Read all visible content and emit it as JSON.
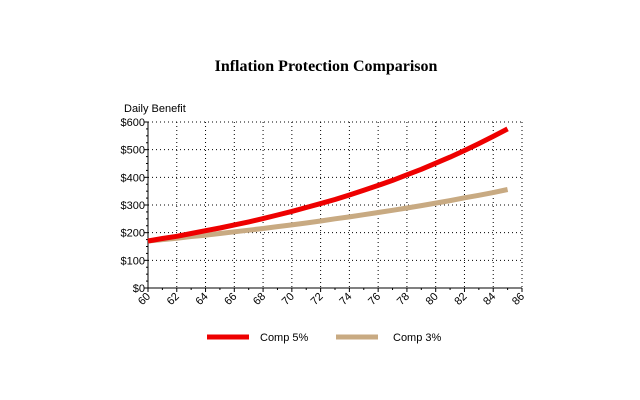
{
  "chart_data": {
    "type": "line",
    "title": "Inflation Protection Comparison",
    "xlabel": "",
    "ylabel": "Daily Benefit",
    "xlim": [
      60,
      86
    ],
    "ylim": [
      0,
      600
    ],
    "x_ticks": [
      "60",
      "62",
      "64",
      "66",
      "68",
      "70",
      "72",
      "74",
      "76",
      "78",
      "80",
      "82",
      "84",
      "86"
    ],
    "y_ticks": [
      "$0",
      "$100",
      "$200",
      "$300",
      "$400",
      "$500",
      "$600"
    ],
    "grid": true,
    "legend_position": "bottom",
    "x": [
      60,
      61,
      62,
      63,
      64,
      65,
      66,
      67,
      68,
      69,
      70,
      71,
      72,
      73,
      74,
      75,
      76,
      77,
      78,
      79,
      80,
      81,
      82,
      83,
      84,
      85
    ],
    "series": [
      {
        "name": "Comp 5%",
        "color": "#ee0000",
        "values": [
          170,
          179,
          187,
          197,
          207,
          217,
          228,
          239,
          251,
          264,
          277,
          291,
          305,
          320,
          336,
          353,
          371,
          389,
          409,
          429,
          451,
          473,
          497,
          522,
          548,
          575
        ]
      },
      {
        "name": "Comp 3%",
        "color": "#c8aa82",
        "values": [
          170,
          175,
          180,
          186,
          191,
          197,
          203,
          209,
          215,
          222,
          228,
          235,
          242,
          250,
          257,
          265,
          273,
          281,
          289,
          298,
          307,
          316,
          326,
          335,
          345,
          356
        ]
      }
    ]
  }
}
